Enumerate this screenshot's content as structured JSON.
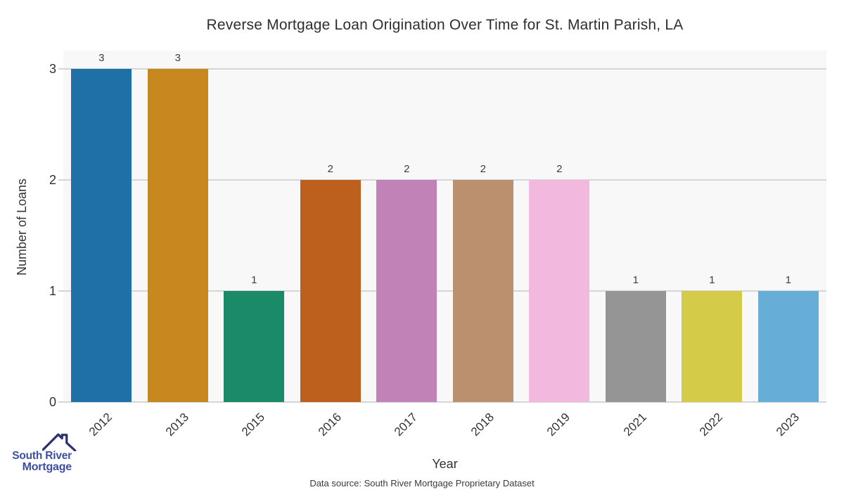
{
  "chart_data": {
    "type": "bar",
    "title": "Reverse Mortgage Loan Origination Over Time for St. Martin Parish, LA",
    "xlabel": "Year",
    "ylabel": "Number of Loans",
    "categories": [
      "2012",
      "2013",
      "2015",
      "2016",
      "2017",
      "2018",
      "2019",
      "2021",
      "2022",
      "2023"
    ],
    "values": [
      3,
      3,
      1,
      2,
      2,
      2,
      2,
      1,
      1,
      1
    ],
    "bar_colors": [
      "#1e70a6",
      "#c6881f",
      "#1b8a68",
      "#bd5f1d",
      "#c183b7",
      "#bb906e",
      "#f2b8de",
      "#959595",
      "#d4cc49",
      "#66aed8"
    ],
    "value_labels": [
      "3",
      "3",
      "1",
      "2",
      "2",
      "2",
      "2",
      "1",
      "1",
      "1"
    ],
    "yticks": [
      "0",
      "1",
      "2",
      "3"
    ],
    "ylim": [
      0,
      3.16
    ],
    "grid": true,
    "legend_position": "none",
    "plot_bg": "#f8f8f8",
    "grid_color": "#d6d6d6"
  },
  "footer": {
    "data_source": "Data source: South River Mortgage Proprietary Dataset"
  },
  "logo": {
    "line1": "South River",
    "line2": "Mortgage",
    "text_color": "#3d4fa1",
    "roof_color": "#2b3272"
  }
}
